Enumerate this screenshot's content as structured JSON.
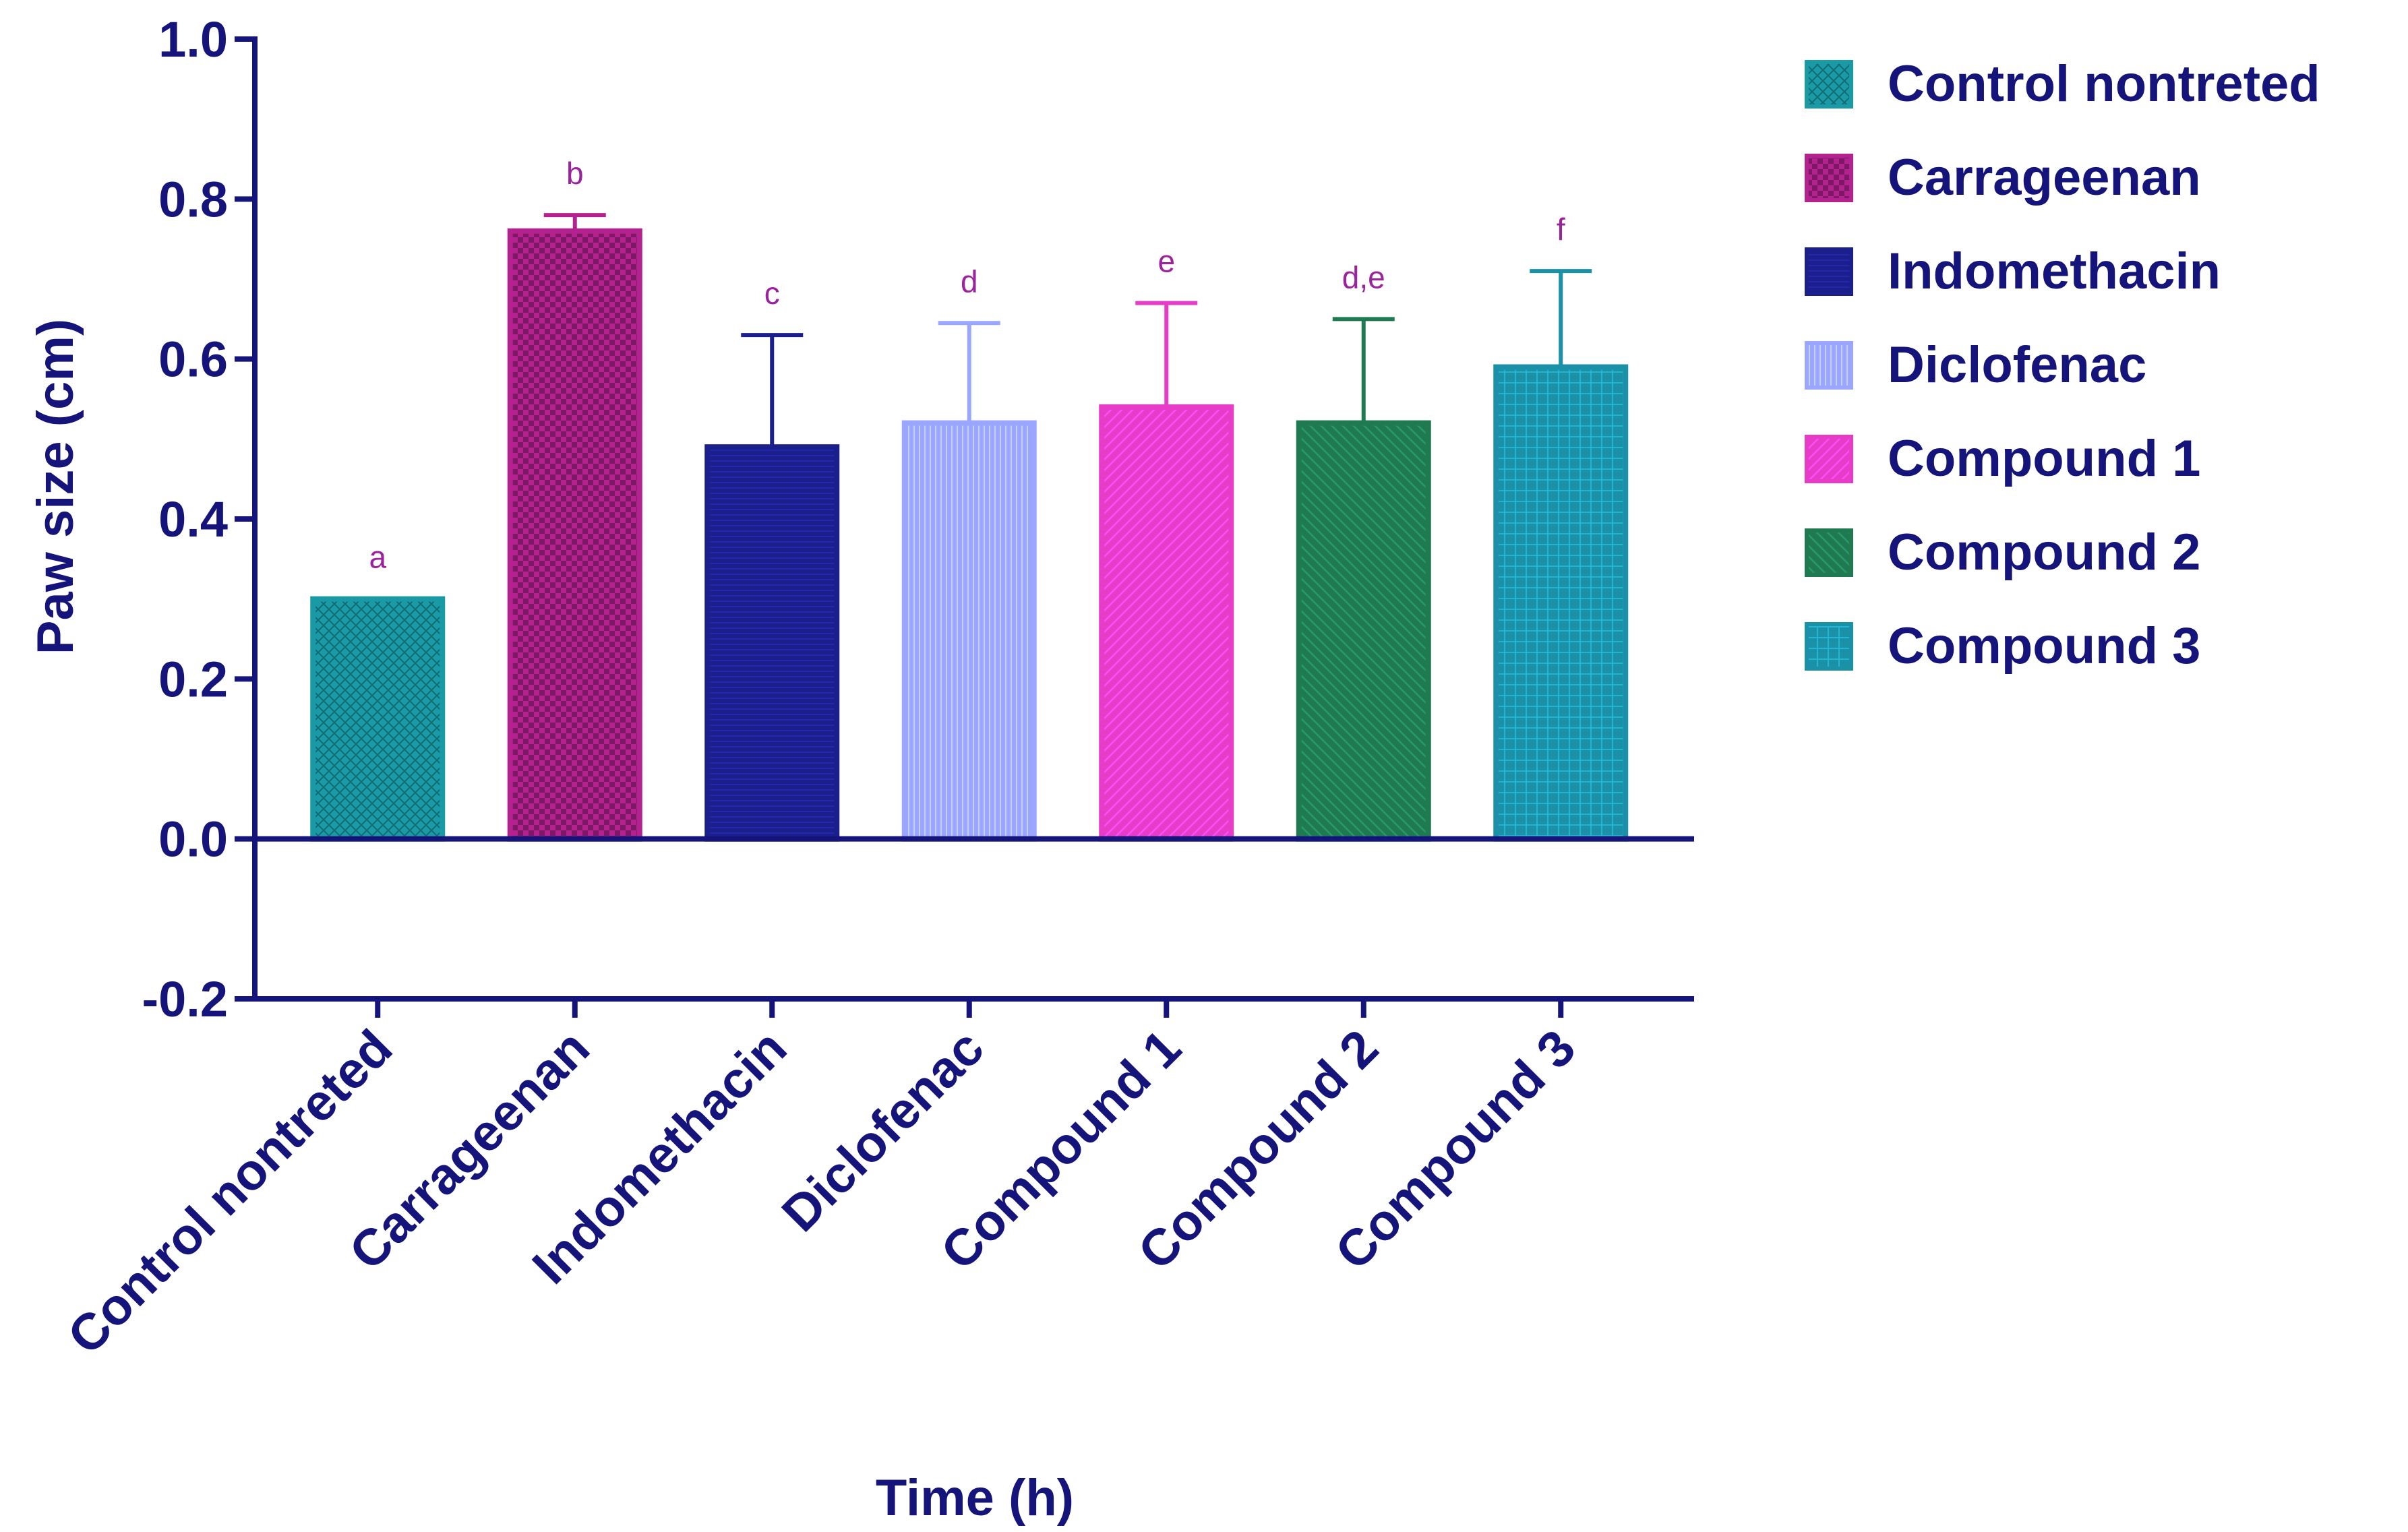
{
  "chart_data": {
    "type": "bar",
    "title": "",
    "xlabel": "Time (h)",
    "ylabel": "Paw size (cm)",
    "ylim": [
      -0.2,
      1.0
    ],
    "yticks": [
      -0.2,
      0.0,
      0.2,
      0.4,
      0.6,
      0.8,
      1.0
    ],
    "ytick_labels": [
      "-0.2",
      "0.0",
      "0.2",
      "0.4",
      "0.6",
      "0.8",
      "1.0"
    ],
    "categories": [
      "Control nontreted",
      "Carrageenan",
      "Indomethacin",
      "Diclofenac",
      "Compound 1",
      "Compound 2",
      "Compound 3"
    ],
    "values": [
      0.3,
      0.76,
      0.49,
      0.52,
      0.54,
      0.52,
      0.59
    ],
    "errors": [
      0.0,
      0.02,
      0.14,
      0.125,
      0.13,
      0.13,
      0.12
    ],
    "significance_labels": [
      "a",
      "b",
      "c",
      "d",
      "e",
      "d,e",
      "f"
    ],
    "colors": [
      "#1a9aa4",
      "#b3228f",
      "#1a1f8c",
      "#9aa6ff",
      "#e63cc8",
      "#1f7a52",
      "#1b91a8"
    ],
    "patterns": [
      "crosshatch",
      "checker",
      "horizontal",
      "vertical",
      "diagonal",
      "backdiagonal",
      "grid"
    ],
    "legend": {
      "position": "right",
      "entries": [
        "Control nontreted",
        "Carrageenan",
        "Indomethacin",
        "Diclofenac",
        "Compound 1",
        "Compound 2",
        "Compound 3"
      ]
    },
    "axis_color": "#14147a",
    "annotation_color": "#9b239b",
    "grid": false
  }
}
